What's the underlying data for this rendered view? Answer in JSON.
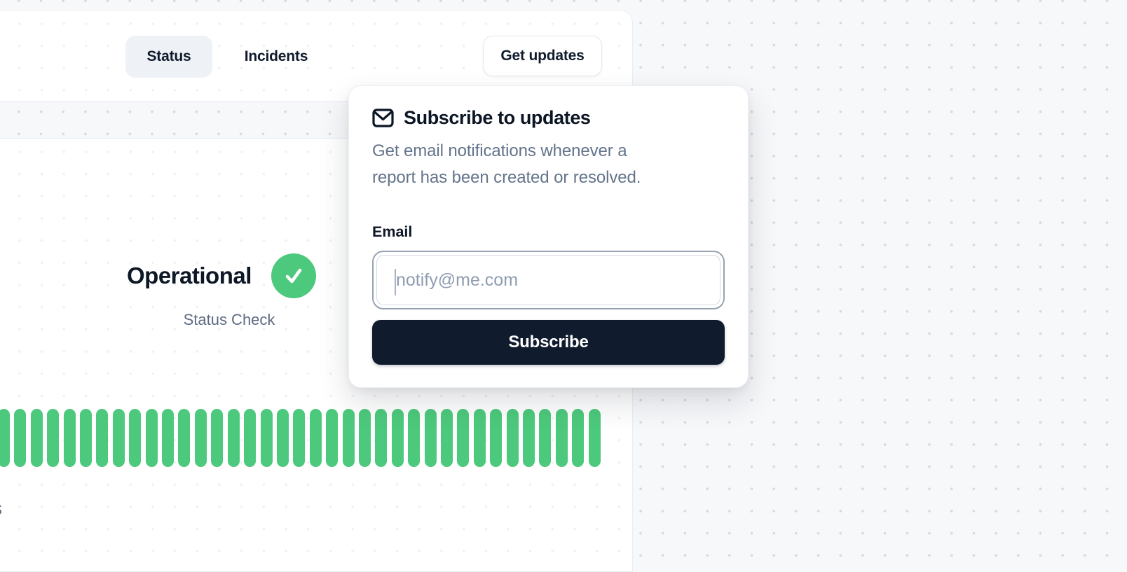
{
  "header": {
    "tabs": [
      {
        "label": "Status",
        "active": true
      },
      {
        "label": "Incidents",
        "active": false
      }
    ],
    "get_updates_label": "Get updates"
  },
  "status": {
    "title": "Operational",
    "subtitle": "Status Check",
    "check_icon": "check-icon",
    "uptime_bars": {
      "count": 37,
      "state": "operational",
      "color": "#4cc97c"
    }
  },
  "popover": {
    "icon": "mail-icon",
    "title": "Subscribe to updates",
    "description_lines": [
      "Get email notifications whenever a",
      "report has been created or resolved."
    ],
    "email_label": "Email",
    "email_value": "",
    "email_placeholder": "notify@me.com",
    "subscribe_label": "Subscribe"
  },
  "page": {
    "bottom_left_partial_text": "s"
  },
  "colors": {
    "accent_green": "#4cc97c",
    "dark_navy": "#101b2e",
    "muted_text": "#64748b",
    "page_background": "#f7f8fa"
  }
}
